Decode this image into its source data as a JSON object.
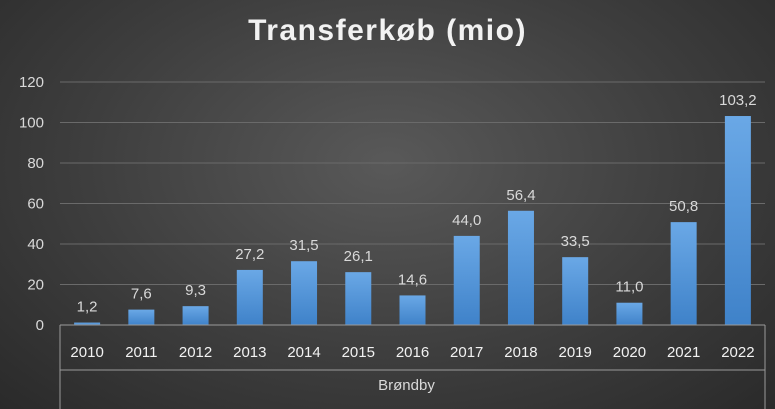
{
  "title": "Transferkøb (mio)",
  "chart_data": {
    "type": "bar",
    "title": "Transferkøb (mio)",
    "group_label": "Brøndby",
    "categories": [
      "2010",
      "2011",
      "2012",
      "2013",
      "2014",
      "2015",
      "2016",
      "2017",
      "2018",
      "2019",
      "2020",
      "2021",
      "2022"
    ],
    "values": [
      1.2,
      7.6,
      9.3,
      27.2,
      31.5,
      26.1,
      14.6,
      44.0,
      56.4,
      33.5,
      11.0,
      50.8,
      103.2
    ],
    "value_labels": [
      "1,2",
      "7,6",
      "9,3",
      "27,2",
      "31,5",
      "26,1",
      "14,6",
      "44,0",
      "56,4",
      "33,5",
      "11,0",
      "50,8",
      "103,2"
    ],
    "y_ticks": [
      0,
      20,
      40,
      60,
      80,
      100,
      120
    ],
    "ylim": [
      0,
      120
    ],
    "grid": true,
    "legend": "none",
    "colors": {
      "bar_top": "#6aa8e6",
      "bar_bottom": "#3f82c9",
      "grid": "#6a6a6a",
      "axis": "#9a9a9a"
    }
  }
}
